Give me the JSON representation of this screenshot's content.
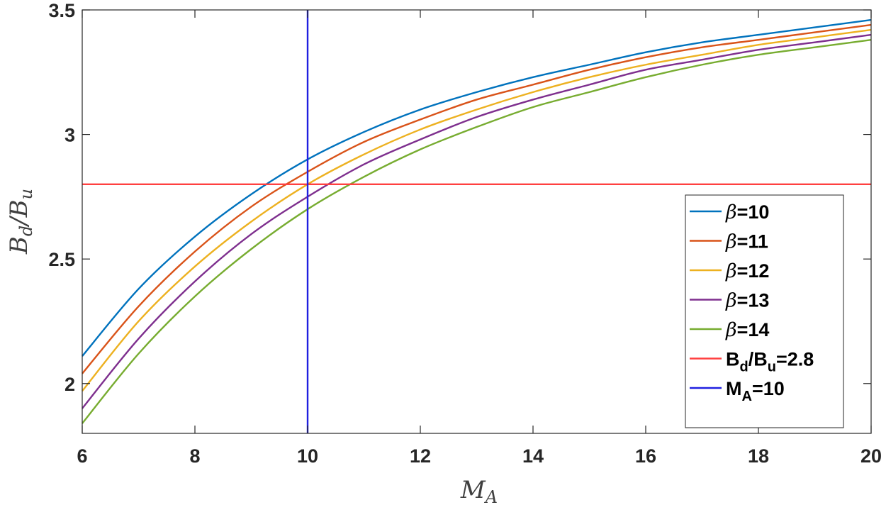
{
  "chart_data": {
    "type": "line",
    "title": "",
    "xlabel_main": "M",
    "xlabel_sub": "A",
    "ylabel_main": "B",
    "ylabel_num_sub": "d",
    "ylabel_slash": "/",
    "ylabel_den": "B",
    "ylabel_den_sub": "u",
    "xlim": [
      6,
      20
    ],
    "ylim": [
      1.8,
      3.5
    ],
    "xticks": [
      6,
      8,
      10,
      12,
      14,
      16,
      18,
      20
    ],
    "yticks": [
      2,
      2.5,
      3,
      3.5
    ],
    "x": [
      6,
      7,
      8,
      9,
      10,
      11,
      12,
      13,
      14,
      15,
      16,
      17,
      18,
      19,
      20
    ],
    "series": [
      {
        "name_symbol": "β",
        "name_value": "=10",
        "color": "#0072BD",
        "values": [
          2.11,
          2.38,
          2.59,
          2.76,
          2.9,
          3.01,
          3.1,
          3.17,
          3.23,
          3.28,
          3.33,
          3.37,
          3.4,
          3.43,
          3.46
        ]
      },
      {
        "name_symbol": "β",
        "name_value": "=11",
        "color": "#D95319",
        "values": [
          2.04,
          2.31,
          2.53,
          2.71,
          2.85,
          2.97,
          3.06,
          3.14,
          3.2,
          3.26,
          3.31,
          3.35,
          3.38,
          3.41,
          3.44
        ]
      },
      {
        "name_symbol": "β",
        "name_value": "=12",
        "color": "#EDB120",
        "values": [
          1.97,
          2.25,
          2.47,
          2.65,
          2.8,
          2.92,
          3.02,
          3.1,
          3.17,
          3.23,
          3.28,
          3.32,
          3.36,
          3.39,
          3.42
        ]
      },
      {
        "name_symbol": "β",
        "name_value": "=13",
        "color": "#7E2F8E",
        "values": [
          1.9,
          2.18,
          2.41,
          2.6,
          2.75,
          2.88,
          2.98,
          3.07,
          3.14,
          3.2,
          3.26,
          3.3,
          3.34,
          3.37,
          3.4
        ]
      },
      {
        "name_symbol": "β",
        "name_value": "=14",
        "color": "#77AC30",
        "values": [
          1.84,
          2.12,
          2.35,
          2.54,
          2.7,
          2.83,
          2.94,
          3.03,
          3.11,
          3.17,
          3.23,
          3.28,
          3.32,
          3.35,
          3.38
        ]
      }
    ],
    "hline": {
      "y": 2.8,
      "color": "#FF4040",
      "label_b1": "B",
      "label_sub1": "d",
      "label_slash": "/",
      "label_b2": "B",
      "label_sub2": "u",
      "label_eq": "=2.8"
    },
    "vline": {
      "x": 10,
      "color": "#2020E0",
      "label_m": "M",
      "label_sub": "A",
      "label_eq": "=10"
    },
    "grid": false,
    "legend_position": "bottom-right"
  }
}
